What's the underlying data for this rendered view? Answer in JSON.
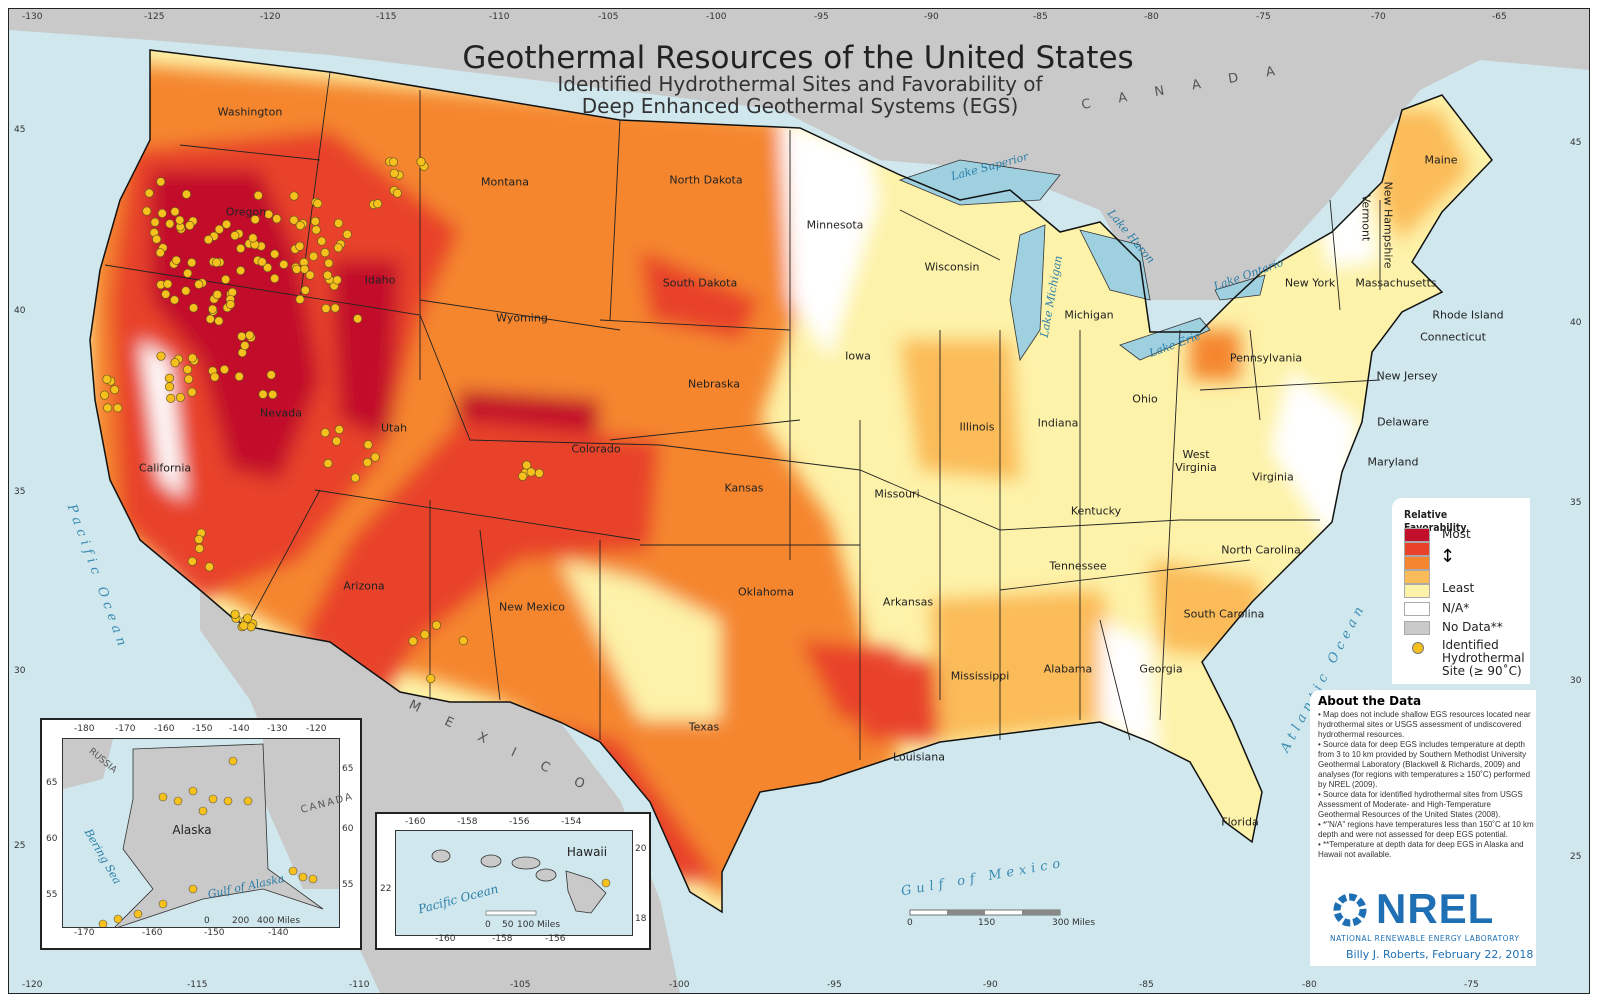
{
  "title": "Geothermal Resources of the United States",
  "subtitle_line1": "Identified Hydrothermal Sites and Favorability of",
  "subtitle_line2": "Deep Enhanced Geothermal Systems (EGS)",
  "graticule": {
    "top": [
      "-130",
      "-125",
      "-120",
      "-115",
      "-110",
      "-105",
      "-100",
      "-95",
      "-90",
      "-85",
      "-80",
      "-75",
      "-70",
      "-65"
    ],
    "bottom": [
      "-120",
      "-115",
      "-110",
      "-105",
      "-100",
      "-95",
      "-90",
      "-85",
      "-80",
      "-75"
    ],
    "left": [
      "45",
      "40",
      "35",
      "30",
      "25"
    ],
    "right": [
      "45",
      "40",
      "35",
      "30",
      "25"
    ]
  },
  "states": [
    "Washington",
    "Oregon",
    "California",
    "Nevada",
    "Idaho",
    "Montana",
    "Wyoming",
    "Utah",
    "Arizona",
    "Colorado",
    "New Mexico",
    "North Dakota",
    "South Dakota",
    "Nebraska",
    "Kansas",
    "Oklahoma",
    "Texas",
    "Minnesota",
    "Iowa",
    "Missouri",
    "Arkansas",
    "Louisiana",
    "Wisconsin",
    "Illinois",
    "Michigan",
    "Indiana",
    "Ohio",
    "Kentucky",
    "Tennessee",
    "Mississippi",
    "Alabama",
    "Georgia",
    "Florida",
    "South Carolina",
    "North Carolina",
    "Virginia",
    "West Virginia",
    "Pennsylvania",
    "New York",
    "Vermont",
    "New Hampshire",
    "Maine",
    "Massachusetts",
    "Rhode Island",
    "Connecticut",
    "New Jersey",
    "Delaware",
    "Maryland"
  ],
  "water_labels": [
    "Lake Superior",
    "Lake Huron",
    "Lake Michigan",
    "Lake Ontario",
    "Lake Erie"
  ],
  "oceans": {
    "pacific": "Pacific Ocean",
    "atlantic": "Atlantic Ocean",
    "gulf": "Gulf of Mexico"
  },
  "countries": {
    "canada": "C A N A D A",
    "mexico": "M E X I C O"
  },
  "scale_bar": {
    "labels": [
      "0",
      "150",
      "300  Miles"
    ]
  },
  "alaska_inset": {
    "label": "Alaska",
    "russia": "RUSSIA",
    "canada": "CANADA",
    "bering": "Bering Sea",
    "gulf": "Gulf of Alaska",
    "top_ticks": [
      "-180",
      "-170",
      "-160",
      "-150",
      "-140",
      "-130",
      "-120"
    ],
    "bottom_ticks": [
      "-170",
      "-160",
      "-150",
      "-140"
    ],
    "left_ticks": [
      "65",
      "60",
      "55"
    ],
    "right_ticks": [
      "65",
      "60",
      "55"
    ],
    "scale": [
      "0",
      "200",
      "400  Miles"
    ]
  },
  "hawaii_inset": {
    "label": "Hawaii",
    "ocean": "Pacific Ocean",
    "top_ticks": [
      "-160",
      "-158",
      "-156",
      "-154"
    ],
    "bottom_ticks": [
      "-160",
      "-158",
      "-156"
    ],
    "left_ticks": [
      "22"
    ],
    "right_ticks": [
      "20",
      "18"
    ],
    "scale": [
      "0",
      "50",
      "100  Miles"
    ]
  },
  "legend": {
    "title": "Relative Favorability",
    "most": "Most",
    "least": "Least",
    "na": "N/A*",
    "nodata": "No Data**",
    "site": "Identified Hydrothermal Site (≥ 90˚C)",
    "colors": {
      "most": "#c20f2b",
      "high": "#e8432a",
      "mid": "#f5862f",
      "low": "#fbbb58",
      "least": "#fdf2a9",
      "na": "#ffffff",
      "nodata": "#c9c9c9",
      "site": "#f7c11d"
    }
  },
  "about": {
    "title": "About the Data",
    "items": [
      "• Map does not include shallow EGS resources located near hydrothermal sites or USGS assessment of undiscovered hydrothermal resources.",
      "• Source data for deep EGS includes temperature at depth from 3 to 10 km provided by Southern Methodist University Geothermal Laboratory (Blackwell & Richards, 2009) and analyses (for regions with temperatures ≥ 150˚C) performed by NREL (2009).",
      "• Source data for identified hydrothermal sites from USGS Assessment of Moderate- and High-Temperature Geothermal Resources of the United States (2008).",
      "• *\"N/A\" regions have temperatures less than 150˚C at 10 km depth and were not assessed for deep EGS potential.",
      "• **Temperature at depth data for deep EGS in Alaska and Hawaii not available."
    ]
  },
  "logo": {
    "name": "NREL",
    "sub": "NATIONAL RENEWABLE ENERGY LABORATORY"
  },
  "credit": "Billy J. Roberts,  February 22, 2018"
}
